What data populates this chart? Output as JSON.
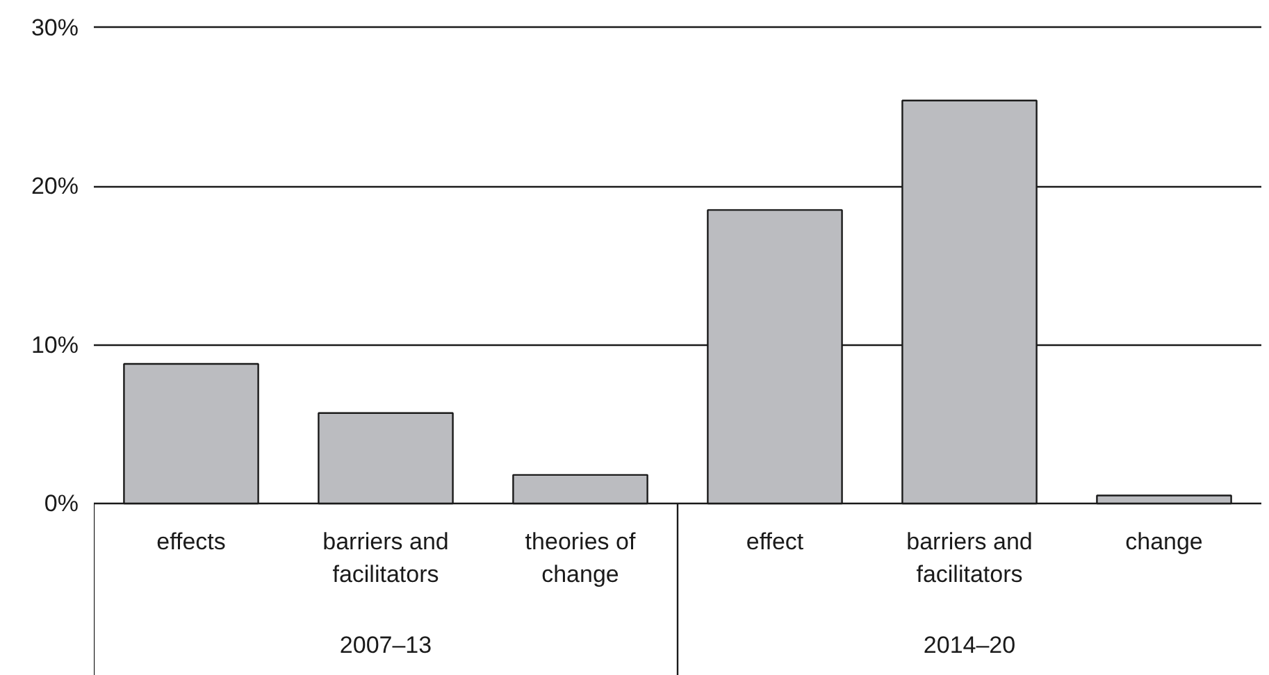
{
  "chart_data": {
    "type": "bar",
    "categories": [
      "effects",
      "barriers and facilitators",
      "theories of change",
      "effect",
      "barriers and facilitators",
      "change"
    ],
    "values": [
      8.8,
      5.7,
      1.8,
      18.5,
      25.4,
      0.5
    ],
    "color": "#bbbcc0",
    "ylim": [
      0,
      30
    ],
    "yticks": [
      {
        "value": 0,
        "label": "0%"
      },
      {
        "value": 10,
        "label": "10%"
      },
      {
        "value": 20,
        "label": "20%"
      },
      {
        "value": 30,
        "label": "30%"
      }
    ],
    "grid": "y",
    "annotations": [
      "2007–13",
      "2014–20"
    ]
  }
}
